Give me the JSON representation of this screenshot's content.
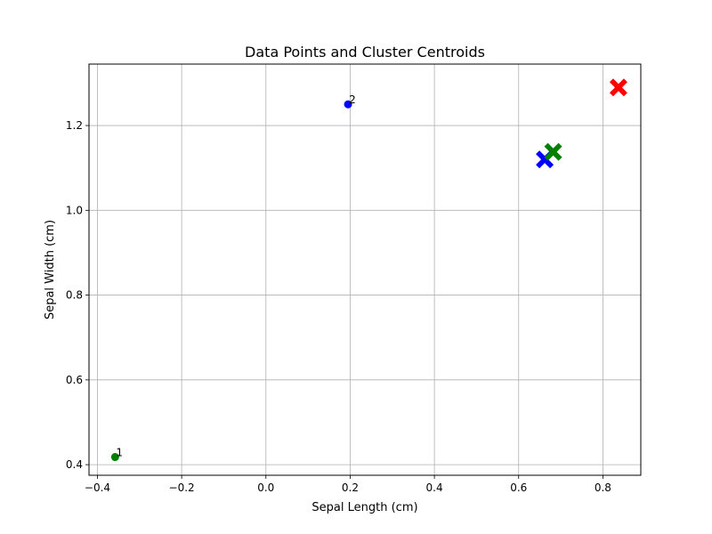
{
  "chart_data": {
    "type": "scatter",
    "title": "Data Points and Cluster Centroids",
    "xlabel": "Sepal Length (cm)",
    "ylabel": "Sepal Width (cm)",
    "xlim": [
      -0.42,
      0.89
    ],
    "ylim": [
      0.375,
      1.345
    ],
    "xticks": [
      -0.4,
      -0.2,
      0.0,
      0.2,
      0.4,
      0.6,
      0.8
    ],
    "xtick_labels": [
      "−0.4",
      "−0.2",
      "0.0",
      "0.2",
      "0.4",
      "0.6",
      "0.8"
    ],
    "yticks": [
      0.4,
      0.6,
      0.8,
      1.0,
      1.2
    ],
    "ytick_labels": [
      "0.4",
      "0.6",
      "0.8",
      "1.0",
      "1.2"
    ],
    "grid": true,
    "points": [
      {
        "x": -0.358,
        "y": 0.418,
        "color": "#008000",
        "label": "1"
      },
      {
        "x": 0.195,
        "y": 1.25,
        "color": "#0000ff",
        "label": "2"
      }
    ],
    "centroids": [
      {
        "x": 0.837,
        "y": 1.29,
        "color": "#ff0000"
      },
      {
        "x": 0.662,
        "y": 1.12,
        "color": "#0000ff"
      },
      {
        "x": 0.682,
        "y": 1.138,
        "color": "#008000"
      }
    ]
  }
}
